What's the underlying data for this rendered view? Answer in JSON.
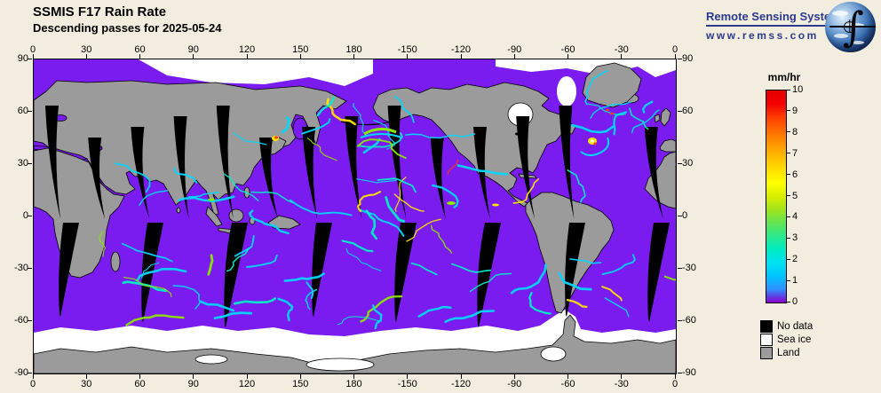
{
  "header": {
    "title": "SSMIS F17 Rain Rate",
    "subtitle": "Descending passes for 2025-05-24"
  },
  "logo": {
    "name": "Remote Sensing Systems",
    "url": "www.remss.com",
    "integral_icon": "∫"
  },
  "map": {
    "lon_labels": [
      "0",
      "30",
      "60",
      "90",
      "120",
      "150",
      "180",
      "-150",
      "-120",
      "-90",
      "-60",
      "-30",
      "0"
    ],
    "lat_labels": [
      "90",
      "60",
      "30",
      "0",
      "-30",
      "-60",
      "-90"
    ],
    "lon_range_deg": [
      0,
      360
    ],
    "lat_range_deg": [
      90,
      -90
    ]
  },
  "colorbar": {
    "title": "mm/hr",
    "tick_labels": [
      "0",
      "1",
      "2",
      "3",
      "4",
      "5",
      "6",
      "7",
      "8",
      "9",
      "10"
    ],
    "min": 0,
    "max": 10,
    "gradient_stops_bottom_to_top": [
      "#8800CC",
      "#2F8FFF",
      "#00C4FF",
      "#00E2F2",
      "#00ECC2",
      "#2AE88C",
      "#62E452",
      "#A0E41E",
      "#D8EE00",
      "#FFFF00",
      "#FFE000",
      "#FFBC00",
      "#FF9400",
      "#FF6A00",
      "#FF3C00",
      "#F20000",
      "#E40000"
    ]
  },
  "legend": {
    "items": [
      {
        "label": "No data",
        "color": "#000000"
      },
      {
        "label": "Sea ice",
        "color": "#FFFFFF"
      },
      {
        "label": "Land",
        "color": "#9B9B9B"
      }
    ]
  },
  "colors": {
    "background": "#F2EDDF",
    "ocean_zero_rain": "#7A1CF0",
    "land": "#9B9B9B",
    "no_data": "#000000",
    "sea_ice": "#FFFFFF",
    "logo_navy": "#2B3A8C",
    "rain_cyan": "#00D9FF",
    "rain_teal": "#00F0C8",
    "rain_green": "#8CE800",
    "rain_yellow": "#FFE400",
    "rain_red": "#FF3C00"
  }
}
